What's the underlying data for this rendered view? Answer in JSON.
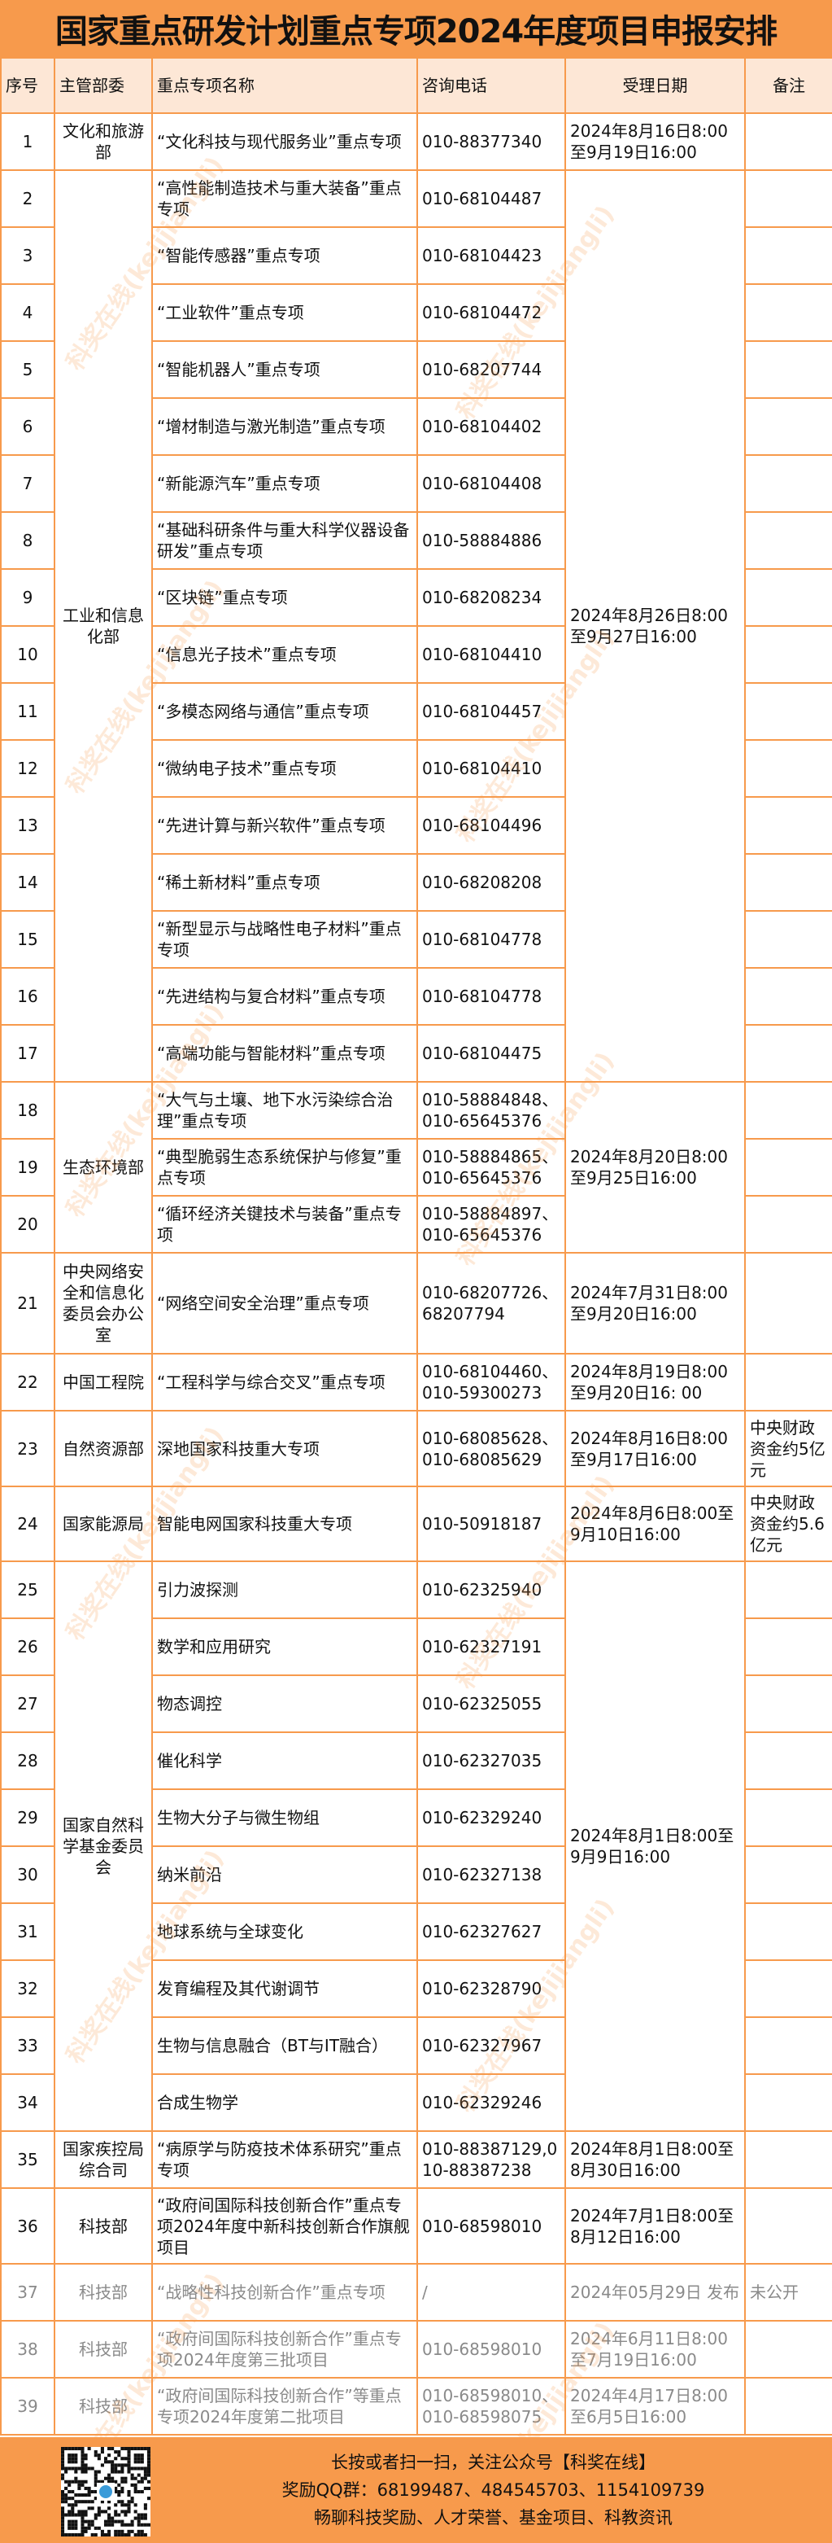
{
  "title": "国家重点研发计划重点专项2024年度项目申报安排",
  "headers": [
    "序号",
    "主管部委",
    "重点专项名称",
    "咨询电话",
    "受理日期",
    "备注"
  ],
  "rows": [
    {
      "no": "1",
      "dept": "文化和旅游部",
      "dept_span": 1,
      "name": "“文化科技与现代服务业”重点专项",
      "phone": "010-88377340",
      "date": "2024年8月16日8:00至9月19日16:00",
      "date_span": 1,
      "note": ""
    },
    {
      "no": "2",
      "dept": "工业和信息化部",
      "dept_span": 16,
      "name": "“高性能制造技术与重大装备”重点专项",
      "phone": "010-68104487",
      "date": "2024年8月26日8:00至9月27日16:00",
      "date_span": 16,
      "note": ""
    },
    {
      "no": "3",
      "name": "“智能传感器”重点专项",
      "phone": "010-68104423",
      "note": ""
    },
    {
      "no": "4",
      "name": "“工业软件”重点专项",
      "phone": "010-68104472",
      "note": ""
    },
    {
      "no": "5",
      "name": "“智能机器人”重点专项",
      "phone": "010-68207744",
      "note": ""
    },
    {
      "no": "6",
      "name": "“增材制造与激光制造”重点专项",
      "phone": "010-68104402",
      "note": ""
    },
    {
      "no": "7",
      "name": "“新能源汽车”重点专项",
      "phone": "010-68104408",
      "note": ""
    },
    {
      "no": "8",
      "name": "“基础科研条件与重大科学仪器设备研发”重点专项",
      "phone": "010-58884886",
      "note": ""
    },
    {
      "no": "9",
      "name": "“区块链”重点专项",
      "phone": "010-68208234",
      "note": ""
    },
    {
      "no": "10",
      "name": "“信息光子技术”重点专项",
      "phone": "010-68104410",
      "note": ""
    },
    {
      "no": "11",
      "name": "“多模态网络与通信”重点专项",
      "phone": "010-68104457",
      "note": ""
    },
    {
      "no": "12",
      "name": "“微纳电子技术”重点专项",
      "phone": "010-68104410",
      "note": ""
    },
    {
      "no": "13",
      "name": "“先进计算与新兴软件”重点专项",
      "phone": "010-68104496",
      "note": ""
    },
    {
      "no": "14",
      "name": "“稀土新材料”重点专项",
      "phone": "010-68208208",
      "note": ""
    },
    {
      "no": "15",
      "name": "“新型显示与战略性电子材料”重点专项",
      "phone": "010-68104778",
      "note": ""
    },
    {
      "no": "16",
      "name": "“先进结构与复合材料”重点专项",
      "phone": "010-68104778",
      "note": ""
    },
    {
      "no": "17",
      "name": "“高端功能与智能材料”重点专项",
      "phone": "010-68104475",
      "note": ""
    },
    {
      "no": "18",
      "dept": "生态环境部",
      "dept_span": 3,
      "name": "“大气与土壤、地下水污染综合治理”重点专项",
      "phone": "010-58884848、010-65645376",
      "date": "2024年8月20日8:00至9月25日16:00",
      "date_span": 3,
      "note": ""
    },
    {
      "no": "19",
      "name": "“典型脆弱生态系统保护与修复”重点专项",
      "phone": "010-58884865、010-65645376",
      "note": ""
    },
    {
      "no": "20",
      "name": "“循环经济关键技术与装备”重点专项",
      "phone": "010-58884897、010-65645376",
      "note": ""
    },
    {
      "no": "21",
      "dept": "中央网络安全和信息化委员会办公室",
      "dept_span": 1,
      "name": "“网络空间安全治理”重点专项",
      "phone": "010-68207726、68207794",
      "date": "2024年7月31日8:00至9月20日16:00",
      "date_span": 1,
      "note": ""
    },
    {
      "no": "22",
      "dept": "中国工程院",
      "dept_span": 1,
      "name": "“工程科学与综合交叉”重点专项",
      "phone": "010-68104460、010-59300273",
      "date": "2024年8月19日8:00至9月20日16: 00",
      "date_span": 1,
      "note": ""
    },
    {
      "no": "23",
      "dept": "自然资源部",
      "dept_span": 1,
      "name": "深地国家科技重大专项",
      "phone": "010-68085628、010-68085629",
      "date": "2024年8月16日8:00至9月17日16:00",
      "date_span": 1,
      "note": "中央财政资金约5亿元"
    },
    {
      "no": "24",
      "dept": "国家能源局",
      "dept_span": 1,
      "name": "智能电网国家科技重大专项",
      "phone": "010-50918187",
      "date": "2024年8月6日8:00至9月10日16:00",
      "date_span": 1,
      "note": "中央财政资金约5.6亿元"
    },
    {
      "no": "25",
      "dept": "国家自然科学基金委员会",
      "dept_span": 10,
      "name": "引力波探测",
      "phone": "010-62325940",
      "date": "2024年8月1日8:00至9月9日16:00",
      "date_span": 10,
      "note": ""
    },
    {
      "no": "26",
      "name": "数学和应用研究",
      "phone": "010-62327191",
      "note": ""
    },
    {
      "no": "27",
      "name": "物态调控",
      "phone": "010-62325055",
      "note": ""
    },
    {
      "no": "28",
      "name": "催化科学",
      "phone": "010-62327035",
      "note": ""
    },
    {
      "no": "29",
      "name": "生物大分子与微生物组",
      "phone": "010-62329240",
      "note": ""
    },
    {
      "no": "30",
      "name": "纳米前沿",
      "phone": "010-62327138",
      "note": ""
    },
    {
      "no": "31",
      "name": "地球系统与全球变化",
      "phone": "010-62327627",
      "note": ""
    },
    {
      "no": "32",
      "name": "发育编程及其代谢调节",
      "phone": "010-62328790",
      "note": ""
    },
    {
      "no": "33",
      "name": "生物与信息融合（BT与IT融合）",
      "phone": "010-62327967",
      "note": ""
    },
    {
      "no": "34",
      "name": "合成生物学",
      "phone": "010-62329246",
      "note": ""
    },
    {
      "no": "35",
      "dept": "国家疾控局综合司",
      "dept_span": 1,
      "name": "“病原学与防疫技术体系研究”重点专项",
      "phone": "010-88387129,010-88387238",
      "date": "2024年8月1日8:00至8月30日16:00",
      "date_span": 1,
      "note": ""
    },
    {
      "no": "36",
      "dept": "科技部",
      "dept_span": 1,
      "name": "“政府间国际科技创新合作”重点专项2024年度中新科技创新合作旗舰项目",
      "phone": "010-68598010",
      "date": "2024年7月1日8:00至8月12日16:00",
      "date_span": 1,
      "note": ""
    },
    {
      "no": "37",
      "dept": "科技部",
      "dept_span": 1,
      "name": "“战略性科技创新合作”重点专项",
      "phone": "/",
      "date": "2024年05月29日 发布",
      "date_span": 1,
      "note": "未公开",
      "closed": true
    },
    {
      "no": "38",
      "dept": "科技部",
      "dept_span": 1,
      "name": "“政府间国际科技创新合作”重点专项2024年度第三批项目",
      "phone": "010-68598010",
      "date": "2024年6月11日8:00至7月19日16:00",
      "date_span": 1,
      "note": "",
      "closed": true
    },
    {
      "no": "39",
      "dept": "科技部",
      "dept_span": 1,
      "name": "“政府间国际科技创新合作”等重点专项2024年度第二批项目",
      "phone": "010-68598010、010-68598075",
      "date": "2024年4月17日8:00至6月5日16:00",
      "date_span": 1,
      "note": "",
      "closed": true
    }
  ],
  "footer": {
    "line1": "长按或者扫一扫，关注公众号【科奖在线】",
    "line2": "奖励QQ群：68199487、484545703、1154109739",
    "line3": "畅聊科技奖励、人才荣誉、基金项目、科教资讯"
  },
  "watermark": "科奖在线(kejijiangli)",
  "colors": {
    "accent": "#F79A4C",
    "header_bg": "#FDE7D6",
    "closed_text": "#8a8a8a"
  }
}
